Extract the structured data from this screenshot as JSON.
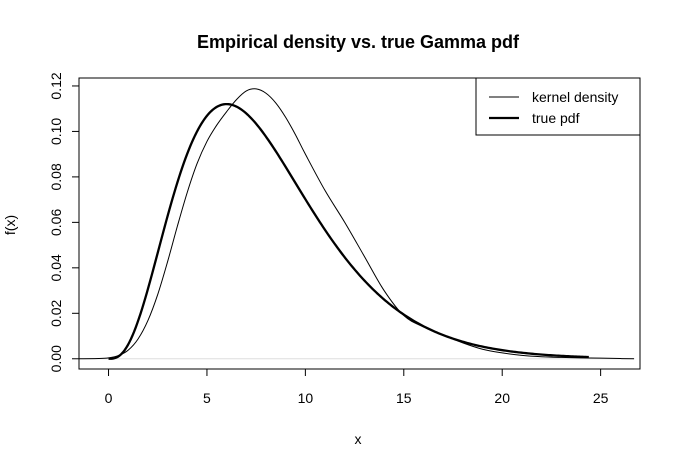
{
  "chart_data": {
    "type": "line",
    "title": "Empirical density vs. true Gamma pdf",
    "xlabel": "x",
    "ylabel": "f(x)",
    "xlim": [
      -1.5,
      27.0
    ],
    "ylim": [
      -0.0045,
      0.1235
    ],
    "x_ticks": [
      0,
      5,
      10,
      15,
      20,
      25
    ],
    "y_ticks": [
      0.0,
      0.02,
      0.04,
      0.06,
      0.08,
      0.1,
      0.12
    ],
    "y_tick_labels": [
      "0.00",
      "0.02",
      "0.04",
      "0.06",
      "0.08",
      "0.10",
      "0.12"
    ],
    "legend_position": "top-right",
    "baseline": {
      "y": 0,
      "color": "#dddddd"
    },
    "series": [
      {
        "name": "kernel density",
        "color": "#000000",
        "width": "thin",
        "x": [
          -1.5,
          -0.5,
          0.0,
          0.5,
          1.0,
          1.5,
          2.0,
          2.5,
          3.0,
          3.5,
          4.0,
          4.5,
          5.0,
          5.5,
          6.0,
          6.5,
          7.0,
          7.5,
          8.0,
          8.5,
          9.0,
          9.5,
          10.0,
          11.0,
          12.0,
          13.0,
          14.0,
          15.0,
          16.0,
          17.0,
          18.0,
          19.0,
          20.0,
          21.0,
          22.0,
          23.0,
          24.0,
          25.0,
          26.0,
          26.7
        ],
        "y": [
          0.0,
          0.0001,
          0.0004,
          0.0014,
          0.0038,
          0.0087,
          0.0168,
          0.0283,
          0.0427,
          0.0584,
          0.0732,
          0.0859,
          0.0956,
          0.1028,
          0.1087,
          0.114,
          0.1178,
          0.1187,
          0.1168,
          0.1125,
          0.1062,
          0.0985,
          0.09,
          0.074,
          0.06,
          0.045,
          0.03,
          0.019,
          0.014,
          0.0105,
          0.007,
          0.0042,
          0.0026,
          0.0015,
          0.0009,
          0.0006,
          0.0004,
          0.0003,
          0.0001,
          0.0
        ]
      },
      {
        "name": "true pdf",
        "color": "#000000",
        "width": "thick",
        "shape": 4,
        "scale": 2,
        "x_range": [
          0,
          24.4
        ]
      }
    ]
  }
}
